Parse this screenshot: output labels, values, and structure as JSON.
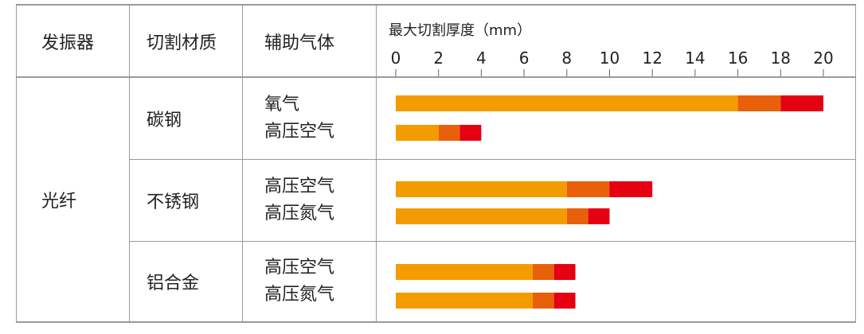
{
  "table": {
    "headers": {
      "oscillator": "发振器",
      "material": "切割材质",
      "gas": "辅助气体"
    },
    "oscillator": "光纤",
    "rows": [
      {
        "material": "碳钢",
        "gases": [
          "氧气",
          "高压空气"
        ]
      },
      {
        "material": "不锈钢",
        "gases": [
          "高压空气",
          "高压氮气"
        ]
      },
      {
        "material": "铝合金",
        "gases": [
          "高压空气",
          "高压氮气"
        ]
      }
    ]
  },
  "chart_data": {
    "type": "bar",
    "orientation": "horizontal",
    "stacked": true,
    "title": "最大切割厚度（mm）",
    "xlim": [
      0,
      20
    ],
    "ticks": [
      0,
      2,
      4,
      6,
      8,
      10,
      12,
      14,
      16,
      18,
      20
    ],
    "segment_colors": [
      "#f39c00",
      "#e8600a",
      "#e50012"
    ],
    "bars": [
      {
        "material": "碳钢",
        "gas": "氧气",
        "segments": [
          16,
          2,
          2
        ]
      },
      {
        "material": "碳钢",
        "gas": "高压空气",
        "segments": [
          2,
          1,
          1
        ]
      },
      {
        "material": "不锈钢",
        "gas": "高压空气",
        "segments": [
          8,
          2,
          2
        ]
      },
      {
        "material": "不锈钢",
        "gas": "高压氮气",
        "segments": [
          8,
          1,
          1
        ]
      },
      {
        "material": "铝合金",
        "gas": "高压空气",
        "segments": [
          6.4,
          1,
          1
        ]
      },
      {
        "material": "铝合金",
        "gas": "高压氮气",
        "segments": [
          6.4,
          1,
          1
        ]
      }
    ]
  }
}
